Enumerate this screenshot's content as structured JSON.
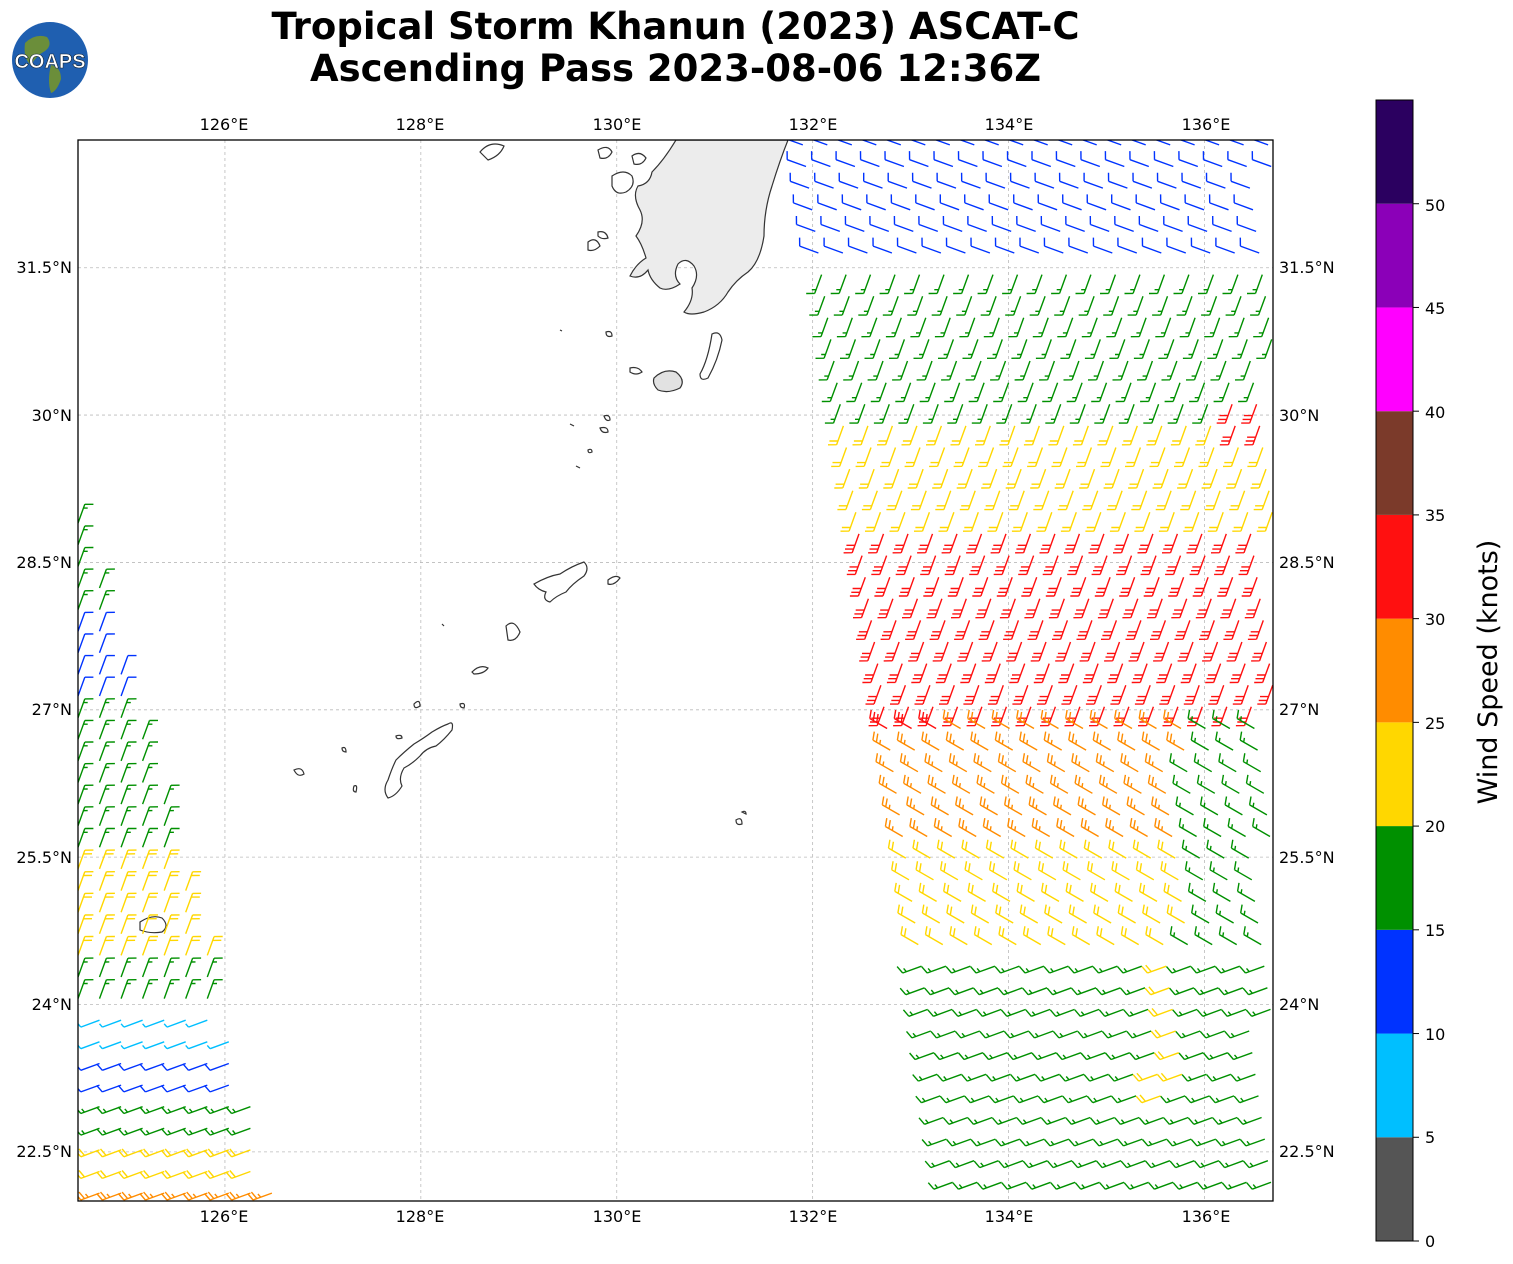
{
  "header": {
    "title_line1": "Tropical Storm Khanun (2023) ASCAT-C",
    "title_line2": "Ascending Pass 2023-08-06 12:36Z",
    "logo_text": "COAPS"
  },
  "map": {
    "lon_range": [
      124.5,
      136.7
    ],
    "lat_range": [
      22.0,
      32.8
    ],
    "lon_ticks": [
      "126°E",
      "128°E",
      "130°E",
      "132°E",
      "134°E",
      "136°E"
    ],
    "lat_ticks": [
      "31.5°N",
      "30°N",
      "28.5°N",
      "27°N",
      "25.5°N",
      "24°N",
      "22.5°N"
    ],
    "gridlines": true,
    "coastline_color": "#333333",
    "land_shading": "grayscale terrain"
  },
  "colorbar": {
    "label": "Wind Speed (knots)",
    "ticks": [
      "0",
      "5",
      "10",
      "15",
      "20",
      "25",
      "30",
      "35",
      "40",
      "45",
      "50"
    ],
    "bins": [
      {
        "min": 0,
        "max": 5,
        "color": "#555555"
      },
      {
        "min": 5,
        "max": 10,
        "color": "#00bfff"
      },
      {
        "min": 10,
        "max": 15,
        "color": "#0033ff"
      },
      {
        "min": 15,
        "max": 20,
        "color": "#009000"
      },
      {
        "min": 20,
        "max": 25,
        "color": "#ffd700"
      },
      {
        "min": 25,
        "max": 30,
        "color": "#ff8c00"
      },
      {
        "min": 30,
        "max": 35,
        "color": "#ff1010"
      },
      {
        "min": 35,
        "max": 40,
        "color": "#7b3a2a"
      },
      {
        "min": 40,
        "max": 45,
        "color": "#ff00ff"
      },
      {
        "min": 45,
        "max": 50,
        "color": "#8b00b8"
      },
      {
        "min": 50,
        "max": 55,
        "color": "#2b0060"
      }
    ]
  },
  "chart_data": {
    "type": "wind-barb swath map",
    "product": "ASCAT-C scatterometer winds",
    "units": "knots",
    "swaths": [
      {
        "name": "west swath",
        "regions": [
          {
            "lat_range": [
              28.0,
              29.0
            ],
            "speed_kt": 17
          },
          {
            "lat_range": [
              27.0,
              28.0
            ],
            "speed_kt": 13
          },
          {
            "lat_range": [
              25.0,
              27.0
            ],
            "speed_kt": 18
          },
          {
            "lat_range": [
              24.5,
              25.5
            ],
            "speed_kt": 22
          },
          {
            "lat_range": [
              24.0,
              24.5
            ],
            "speed_kt": 16
          },
          {
            "lat_range": [
              23.5,
              24.0
            ],
            "speed_kt": 9
          },
          {
            "lat_range": [
              23.0,
              23.5
            ],
            "speed_kt": 13
          },
          {
            "lat_range": [
              22.6,
              23.0
            ],
            "speed_kt": 18
          },
          {
            "lat_range": [
              22.3,
              22.6
            ],
            "speed_kt": 22
          },
          {
            "lat_range": [
              22.0,
              22.3
            ],
            "speed_kt": 27
          }
        ]
      },
      {
        "name": "east swath",
        "regions": [
          {
            "lat_range": [
              31.5,
              32.8
            ],
            "speed_kt": 13
          },
          {
            "lat_range": [
              30.0,
              31.5
            ],
            "speed_kt": 18
          },
          {
            "lat_range": [
              27.0,
              30.0
            ],
            "speed_kt": 23
          },
          {
            "lat_range": [
              26.8,
              29.0
            ],
            "speed_kt": 32
          },
          {
            "lat_range": [
              25.5,
              27.0
            ],
            "speed_kt": 27
          },
          {
            "lat_range": [
              24.5,
              25.5
            ],
            "speed_kt": 23
          },
          {
            "lat_range": [
              22.0,
              24.5
            ],
            "speed_kt": 18
          }
        ]
      }
    ]
  }
}
